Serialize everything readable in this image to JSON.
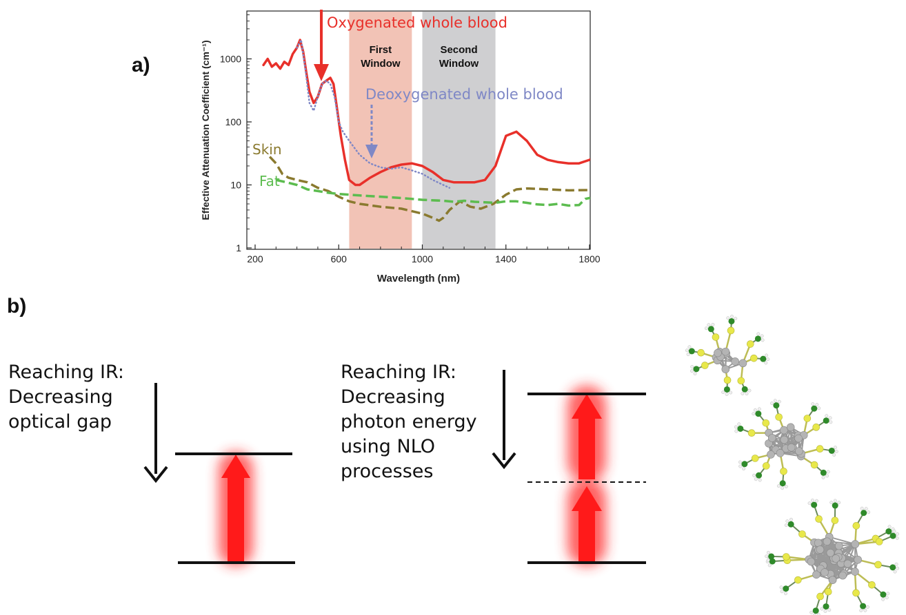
{
  "panel_a_label": "a)",
  "panel_b_label": "b)",
  "chart_data": {
    "type": "line",
    "xlabel": "Wavelength (nm)",
    "ylabel": "Effective Attenuation Coefficient (cm⁻¹)",
    "xlim": [
      200,
      1850
    ],
    "ylim": [
      1,
      5000
    ],
    "yscale": "log",
    "x_ticks": [
      200,
      600,
      1000,
      1400,
      1800
    ],
    "y_ticks": [
      1,
      10,
      100,
      1000
    ],
    "x_tick_labels": [
      "200",
      "600",
      "1000",
      "1400",
      "1800"
    ],
    "y_tick_labels": [
      "1",
      "10",
      "100",
      "1000"
    ],
    "grid": false,
    "bands": [
      {
        "label_lines": [
          "First",
          "Window"
        ],
        "x_range": [
          650,
          950
        ],
        "color": "#f2c3b6"
      },
      {
        "label_lines": [
          "Second",
          "Window"
        ],
        "x_range": [
          1000,
          1350
        ],
        "color": "#cfcfd1"
      }
    ],
    "series": [
      {
        "name": "Oxygenated whole blood",
        "color": "#e8302a",
        "style": "solid",
        "x": [
          240,
          260,
          280,
          300,
          320,
          340,
          360,
          380,
          400,
          415,
          430,
          445,
          460,
          480,
          500,
          520,
          540,
          560,
          575,
          590,
          610,
          630,
          650,
          680,
          700,
          750,
          800,
          850,
          900,
          950,
          1000,
          1050,
          1100,
          1150,
          1200,
          1250,
          1300,
          1350,
          1400,
          1450,
          1500,
          1550,
          1600,
          1650,
          1700,
          1750,
          1800,
          1850
        ],
        "y": [
          800,
          1000,
          750,
          850,
          700,
          900,
          800,
          1200,
          1500,
          2000,
          1300,
          600,
          300,
          200,
          250,
          400,
          450,
          500,
          400,
          180,
          60,
          25,
          12,
          10,
          10,
          13,
          16,
          19,
          21,
          22,
          20,
          16,
          12,
          11,
          11,
          11,
          12,
          20,
          60,
          70,
          50,
          30,
          25,
          23,
          22,
          22,
          25,
          30
        ]
      },
      {
        "name": "Deoxygenated whole blood",
        "color": "#7f88c6",
        "style": "dotted",
        "x": [
          400,
          420,
          440,
          460,
          480,
          500,
          520,
          540,
          560,
          580,
          600,
          620,
          650,
          700,
          750,
          800,
          850,
          900,
          950,
          1000,
          1050,
          1100,
          1130
        ],
        "y": [
          1500,
          2000,
          700,
          200,
          150,
          250,
          400,
          450,
          400,
          250,
          100,
          70,
          50,
          30,
          22,
          19,
          18,
          19,
          17,
          15,
          12,
          10,
          9
        ]
      },
      {
        "name": "Skin",
        "color": "#8a7a2f",
        "style": "dashed",
        "x": [
          270,
          300,
          330,
          360,
          400,
          450,
          500,
          550,
          600,
          650,
          700,
          800,
          900,
          1000,
          1050,
          1080,
          1100,
          1130,
          1180,
          1230,
          1280,
          1340,
          1400,
          1450,
          1500,
          1600,
          1700,
          1800,
          1850
        ],
        "y": [
          28,
          22,
          15,
          13,
          12,
          11,
          9,
          8,
          6.5,
          5.5,
          5,
          4.5,
          4.2,
          3.5,
          3,
          2.7,
          3,
          4,
          5.5,
          4.5,
          4.2,
          5,
          7,
          8.5,
          8.8,
          8.5,
          8.2,
          8.3,
          8.1
        ]
      },
      {
        "name": "Fat",
        "color": "#5cbc4f",
        "style": "dashed",
        "x": [
          300,
          350,
          400,
          450,
          500,
          550,
          600,
          650,
          700,
          800,
          900,
          1000,
          1100,
          1150,
          1200,
          1250,
          1300,
          1350,
          1400,
          1450,
          1500,
          1550,
          1600,
          1650,
          1700,
          1750,
          1780,
          1800,
          1830,
          1850
        ],
        "y": [
          12,
          11,
          10,
          8.5,
          8,
          7.5,
          7.2,
          7,
          6.8,
          6.5,
          6.2,
          5.8,
          5.6,
          5.4,
          5.6,
          5.4,
          5.3,
          5.2,
          5.5,
          5.5,
          5.2,
          4.9,
          4.8,
          5,
          4.7,
          4.8,
          6,
          6.2,
          5.5,
          5.3
        ]
      }
    ],
    "annotations": [
      {
        "text": "Oxygenated whole blood",
        "color": "#e8302a"
      },
      {
        "text": "Deoxygenated whole blood",
        "color": "#7f88c6"
      },
      {
        "text": "Skin",
        "color": "#8a7a2f"
      },
      {
        "text": "Fat",
        "color": "#5cbc4f"
      }
    ]
  },
  "diagram": {
    "left_caption": [
      "Reaching IR:",
      "Decreasing",
      "optical gap"
    ],
    "right_caption": [
      "Reaching IR:",
      "Decreasing",
      "photon energy",
      "using NLO",
      "processes"
    ],
    "glow_color": "#ff2a2a",
    "line_color": "#111111"
  },
  "molecule_colors": {
    "metal": "#b4b4b4",
    "sulfur": "#e8e84a",
    "carbon": "#2f8a2a",
    "hydrogen": "#f0f0f0"
  }
}
